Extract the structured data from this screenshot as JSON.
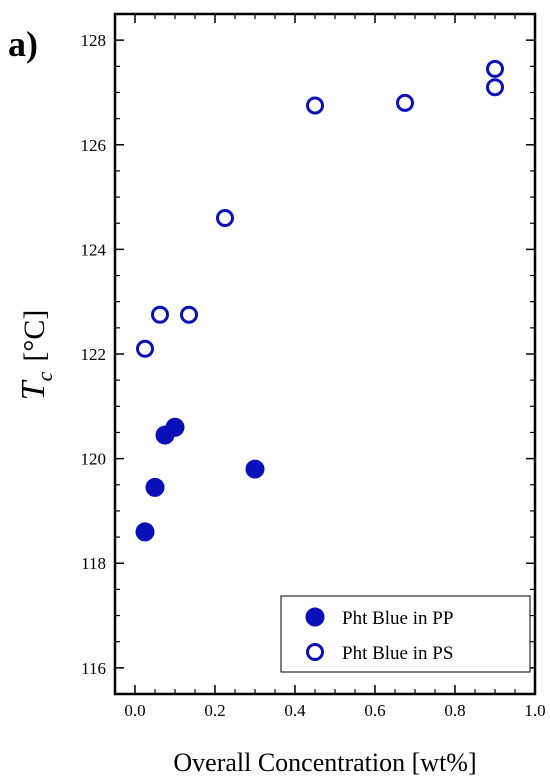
{
  "chart_data": {
    "type": "scatter",
    "panel_label": "a)",
    "xlabel": "Overall Concentration [wt%]",
    "ylabel_symbol": "T",
    "ylabel_subscript": "c",
    "ylabel_unit": "[°C]",
    "xlim": [
      -0.05,
      1.0
    ],
    "ylim": [
      115.5,
      128.5
    ],
    "x_ticks": [
      "0.0",
      "0.2",
      "0.4",
      "0.6",
      "0.8",
      "1.0"
    ],
    "y_ticks": [
      "116",
      "118",
      "120",
      "122",
      "124",
      "126",
      "128"
    ],
    "x_tick_values": [
      0.0,
      0.2,
      0.4,
      0.6,
      0.8,
      1.0
    ],
    "y_tick_values": [
      116,
      118,
      120,
      122,
      124,
      126,
      128
    ],
    "x_minor_ticks": [
      -0.05,
      0.05,
      0.1,
      0.15,
      0.25,
      0.3,
      0.35,
      0.45,
      0.5,
      0.55,
      0.65,
      0.7,
      0.75,
      0.85,
      0.9,
      0.95
    ],
    "y_minor_ticks": [
      115.5,
      116.5,
      117,
      117.5,
      118.5,
      119,
      119.5,
      120.5,
      121,
      121.5,
      122.5,
      123,
      123.5,
      124.5,
      125,
      125.5,
      126.5,
      127,
      127.5,
      128.5
    ],
    "grid": false,
    "legend_position": "bottom-right",
    "color": "#0a10b8",
    "series": [
      {
        "name": "Pht Blue in PP",
        "marker": "filled-circle",
        "points": [
          {
            "x": 0.025,
            "y": 118.6
          },
          {
            "x": 0.05,
            "y": 119.45
          },
          {
            "x": 0.075,
            "y": 120.45
          },
          {
            "x": 0.1,
            "y": 120.6
          },
          {
            "x": 0.3,
            "y": 119.8
          }
        ]
      },
      {
        "name": "Pht Blue in PS",
        "marker": "open-circle",
        "points": [
          {
            "x": 0.025,
            "y": 122.1
          },
          {
            "x": 0.0625,
            "y": 122.75
          },
          {
            "x": 0.135,
            "y": 122.75
          },
          {
            "x": 0.225,
            "y": 124.6
          },
          {
            "x": 0.45,
            "y": 126.75
          },
          {
            "x": 0.675,
            "y": 126.8
          },
          {
            "x": 0.9,
            "y": 127.1
          },
          {
            "x": 0.9,
            "y": 127.45
          }
        ]
      }
    ]
  }
}
